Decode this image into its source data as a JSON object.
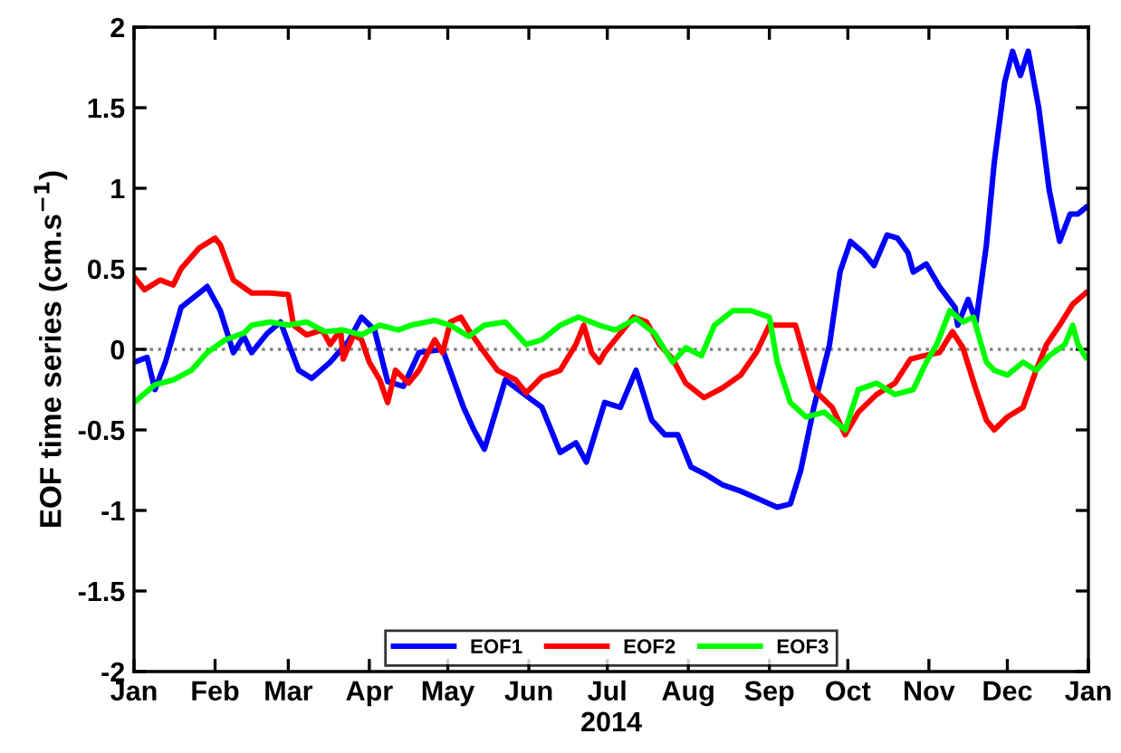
{
  "chart_data": {
    "type": "line",
    "xlabel": "2014",
    "ylabel": "EOF time series (cm.s$^{−1}$)",
    "xlim": [
      "2014-01-01",
      "2015-01-01"
    ],
    "xticks": [
      {
        "value": "2014-01-01",
        "label": "Jan"
      },
      {
        "value": "2014-02-01",
        "label": "Feb"
      },
      {
        "value": "2014-03-01",
        "label": "Mar"
      },
      {
        "value": "2014-04-01",
        "label": "Apr"
      },
      {
        "value": "2014-05-01",
        "label": "May"
      },
      {
        "value": "2014-06-01",
        "label": "Jun"
      },
      {
        "value": "2014-07-01",
        "label": "Jul"
      },
      {
        "value": "2014-08-01",
        "label": "Aug"
      },
      {
        "value": "2014-09-01",
        "label": "Sep"
      },
      {
        "value": "2014-10-01",
        "label": "Oct"
      },
      {
        "value": "2014-11-01",
        "label": "Nov"
      },
      {
        "value": "2014-12-01",
        "label": "Dec"
      },
      {
        "value": "2015-01-01",
        "label": "Jan"
      }
    ],
    "ylim": [
      -2,
      2
    ],
    "yticks": [
      -2,
      -1.5,
      -1,
      -0.5,
      0,
      0.5,
      1,
      1.5,
      2
    ],
    "grid": false,
    "legend": "bottom",
    "marker": "none",
    "line_style": "solid",
    "ref_lines": [
      {
        "axis": "y",
        "value": 0,
        "color": "#808080",
        "line_style": "dotted"
      }
    ],
    "series": [
      {
        "name": "EOF1",
        "color": "#0000ff",
        "x": [
          "2014-01-01",
          "2014-01-06",
          "2014-01-09",
          "2014-01-13",
          "2014-01-19",
          "2014-01-26",
          "2014-01-29",
          "2014-02-03",
          "2014-02-08",
          "2014-02-12",
          "2014-02-15",
          "2014-02-21",
          "2014-02-26",
          "2014-03-05",
          "2014-03-10",
          "2014-03-17",
          "2014-03-24",
          "2014-03-29",
          "2014-04-03",
          "2014-04-08",
          "2014-04-14",
          "2014-04-20",
          "2014-04-29",
          "2014-05-07",
          "2014-05-11",
          "2014-05-15",
          "2014-05-23",
          "2014-06-01",
          "2014-06-06",
          "2014-06-13",
          "2014-06-19",
          "2014-06-23",
          "2014-06-30",
          "2014-07-06",
          "2014-07-12",
          "2014-07-18",
          "2014-07-23",
          "2014-07-28",
          "2014-08-02",
          "2014-08-08",
          "2014-08-14",
          "2014-08-21",
          "2014-08-28",
          "2014-09-04",
          "2014-09-09",
          "2014-09-13",
          "2014-09-18",
          "2014-09-24",
          "2014-09-28",
          "2014-10-02",
          "2014-10-07",
          "2014-10-11",
          "2014-10-16",
          "2014-10-20",
          "2014-10-24",
          "2014-10-26",
          "2014-10-31",
          "2014-11-05",
          "2014-11-11",
          "2014-11-12",
          "2014-11-16",
          "2014-11-19",
          "2014-11-23",
          "2014-11-26",
          "2014-11-30",
          "2014-12-03",
          "2014-12-06",
          "2014-12-09",
          "2014-12-13",
          "2014-12-17",
          "2014-12-21",
          "2014-12-25",
          "2014-12-28",
          "2014-12-31"
        ],
        "values": [
          -0.08,
          -0.05,
          -0.25,
          -0.08,
          0.26,
          0.35,
          0.39,
          0.24,
          -0.02,
          0.08,
          -0.02,
          0.1,
          0.17,
          -0.13,
          -0.18,
          -0.08,
          0.05,
          0.2,
          0.12,
          -0.2,
          -0.23,
          -0.02,
          0.0,
          -0.36,
          -0.5,
          -0.62,
          -0.19,
          -0.3,
          -0.36,
          -0.64,
          -0.58,
          -0.7,
          -0.33,
          -0.36,
          -0.13,
          -0.44,
          -0.53,
          -0.53,
          -0.73,
          -0.78,
          -0.84,
          -0.88,
          -0.93,
          -0.98,
          -0.96,
          -0.75,
          -0.36,
          0.03,
          0.48,
          0.67,
          0.6,
          0.52,
          0.71,
          0.69,
          0.6,
          0.48,
          0.53,
          0.39,
          0.26,
          0.15,
          0.31,
          0.17,
          0.65,
          1.16,
          1.66,
          1.85,
          1.7,
          1.85,
          1.5,
          0.99,
          0.67,
          0.84,
          0.84,
          0.88
        ]
      },
      {
        "name": "EOF2",
        "color": "#ff0000",
        "x": [
          "2014-01-01",
          "2014-01-05",
          "2014-01-11",
          "2014-01-16",
          "2014-01-19",
          "2014-01-26",
          "2014-02-01",
          "2014-02-03",
          "2014-02-08",
          "2014-02-15",
          "2014-02-22",
          "2014-03-01",
          "2014-03-03",
          "2014-03-08",
          "2014-03-14",
          "2014-03-17",
          "2014-03-21",
          "2014-03-22",
          "2014-03-26",
          "2014-03-29",
          "2014-04-01",
          "2014-04-05",
          "2014-04-08",
          "2014-04-11",
          "2014-04-16",
          "2014-04-20",
          "2014-04-26",
          "2014-04-29",
          "2014-05-02",
          "2014-05-06",
          "2014-05-09",
          "2014-05-15",
          "2014-05-20",
          "2014-05-27",
          "2014-05-31",
          "2014-06-06",
          "2014-06-13",
          "2014-06-19",
          "2014-06-22",
          "2014-06-25",
          "2014-06-28",
          "2014-06-30",
          "2014-07-04",
          "2014-07-11",
          "2014-07-16",
          "2014-07-21",
          "2014-07-26",
          "2014-07-31",
          "2014-08-07",
          "2014-08-14",
          "2014-08-21",
          "2014-08-27",
          "2014-09-01",
          "2014-09-11",
          "2014-09-18",
          "2014-09-25",
          "2014-09-30",
          "2014-10-05",
          "2014-10-12",
          "2014-10-19",
          "2014-10-25",
          "2014-10-30",
          "2014-11-05",
          "2014-11-10",
          "2014-11-14",
          "2014-11-19",
          "2014-11-23",
          "2014-11-26",
          "2014-12-01",
          "2014-12-07",
          "2014-12-12",
          "2014-12-16",
          "2014-12-21",
          "2014-12-26",
          "2014-12-31"
        ],
        "values": [
          0.45,
          0.37,
          0.43,
          0.4,
          0.5,
          0.63,
          0.69,
          0.65,
          0.43,
          0.35,
          0.35,
          0.34,
          0.15,
          0.09,
          0.12,
          0.03,
          0.12,
          -0.06,
          0.09,
          0.06,
          -0.08,
          -0.19,
          -0.33,
          -0.13,
          -0.21,
          -0.13,
          0.06,
          -0.02,
          0.17,
          0.2,
          0.12,
          -0.02,
          -0.13,
          -0.19,
          -0.27,
          -0.17,
          -0.13,
          0.03,
          0.15,
          -0.02,
          -0.08,
          -0.02,
          0.06,
          0.2,
          0.17,
          0.03,
          -0.06,
          -0.21,
          -0.3,
          -0.24,
          -0.16,
          -0.02,
          0.15,
          0.15,
          -0.25,
          -0.36,
          -0.53,
          -0.39,
          -0.28,
          -0.21,
          -0.06,
          -0.04,
          -0.02,
          0.11,
          0.01,
          -0.25,
          -0.44,
          -0.5,
          -0.42,
          -0.36,
          -0.13,
          0.03,
          0.15,
          0.28,
          0.35
        ]
      },
      {
        "name": "EOF3",
        "color": "#00ff00",
        "x": [
          "2014-01-01",
          "2014-01-09",
          "2014-01-16",
          "2014-01-23",
          "2014-01-29",
          "2014-02-05",
          "2014-02-12",
          "2014-02-15",
          "2014-02-22",
          "2014-03-01",
          "2014-03-08",
          "2014-03-15",
          "2014-03-22",
          "2014-03-29",
          "2014-04-05",
          "2014-04-12",
          "2014-04-17",
          "2014-04-26",
          "2014-05-02",
          "2014-05-09",
          "2014-05-15",
          "2014-05-23",
          "2014-05-31",
          "2014-06-06",
          "2014-06-13",
          "2014-06-20",
          "2014-06-28",
          "2014-07-04",
          "2014-07-12",
          "2014-07-19",
          "2014-07-26",
          "2014-07-31",
          "2014-08-06",
          "2014-08-11",
          "2014-08-18",
          "2014-08-25",
          "2014-09-01",
          "2014-09-04",
          "2014-09-09",
          "2014-09-15",
          "2014-09-22",
          "2014-09-30",
          "2014-10-05",
          "2014-10-12",
          "2014-10-19",
          "2014-10-26",
          "2014-10-31",
          "2014-11-04",
          "2014-11-09",
          "2014-11-14",
          "2014-11-18",
          "2014-11-23",
          "2014-11-26",
          "2014-12-01",
          "2014-12-07",
          "2014-12-12",
          "2014-12-17",
          "2014-12-23",
          "2014-12-26",
          "2014-12-28",
          "2014-12-31"
        ],
        "values": [
          -0.33,
          -0.22,
          -0.19,
          -0.13,
          -0.02,
          0.06,
          0.1,
          0.15,
          0.17,
          0.15,
          0.17,
          0.11,
          0.12,
          0.09,
          0.15,
          0.12,
          0.15,
          0.18,
          0.15,
          0.08,
          0.15,
          0.17,
          0.03,
          0.06,
          0.15,
          0.2,
          0.15,
          0.12,
          0.19,
          0.1,
          -0.08,
          0.01,
          -0.04,
          0.15,
          0.24,
          0.24,
          0.2,
          -0.08,
          -0.33,
          -0.42,
          -0.39,
          -0.5,
          -0.25,
          -0.21,
          -0.28,
          -0.25,
          -0.08,
          0.03,
          0.24,
          0.17,
          0.2,
          -0.08,
          -0.13,
          -0.16,
          -0.08,
          -0.13,
          -0.04,
          0.03,
          0.15,
          0.03,
          -0.05
        ]
      }
    ]
  }
}
